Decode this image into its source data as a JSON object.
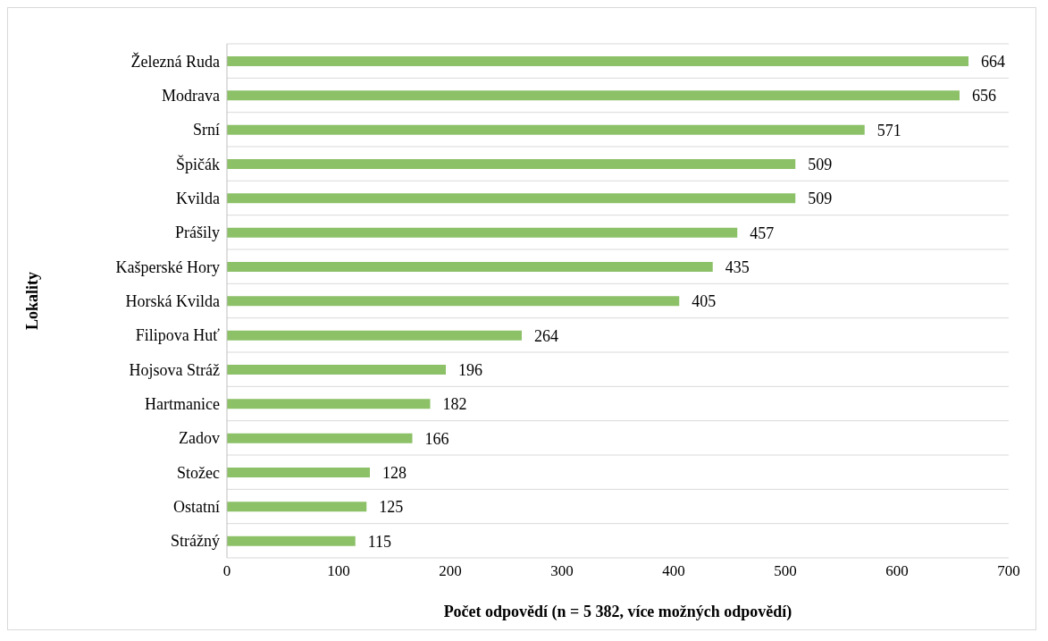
{
  "chart_data": {
    "type": "bar",
    "orientation": "horizontal",
    "ylabel": "Lokality",
    "xlabel": "Počet odpovědí (n = 5 382, více možných  odpovědí)",
    "categories": [
      "Železná Ruda",
      "Modrava",
      "Srní",
      "Špičák",
      "Kvilda",
      "Prášily",
      "Kašperské Hory",
      "Horská Kvilda",
      "Filipova Huť",
      "Hojsova Stráž",
      "Hartmanice",
      "Zadov",
      "Stožec",
      "Ostatní",
      "Strážný"
    ],
    "values": [
      664,
      656,
      571,
      509,
      509,
      457,
      435,
      405,
      264,
      196,
      182,
      166,
      128,
      125,
      115
    ],
    "color": "#8cc168",
    "xlim": [
      0,
      700
    ],
    "xticks": [
      0,
      100,
      200,
      300,
      400,
      500,
      600,
      700
    ],
    "grid": "y",
    "data_labels": true,
    "legend": false
  }
}
